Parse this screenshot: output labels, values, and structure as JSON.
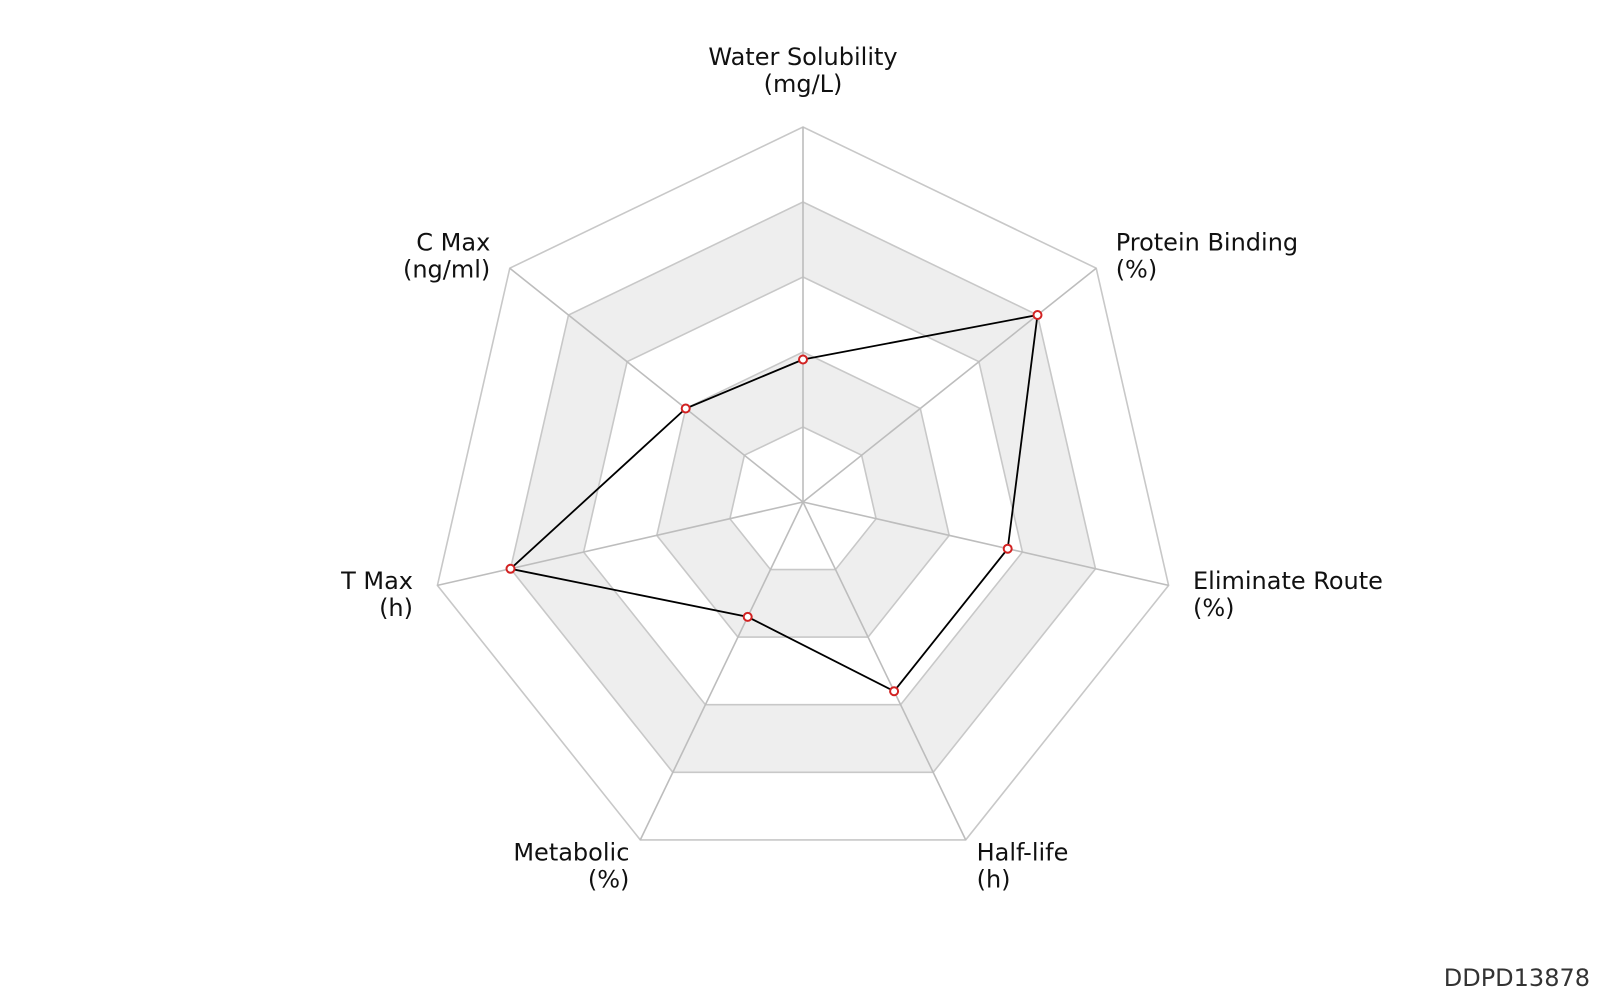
{
  "figure_id": "DDPD13878",
  "chart_data": {
    "type": "radar",
    "axes": [
      {
        "name": "Water Solubility",
        "unit": "(mg/L)"
      },
      {
        "name": "Protein Binding",
        "unit": "(%)"
      },
      {
        "name": "Eliminate Route",
        "unit": "(%)"
      },
      {
        "name": "Half-life",
        "unit": "(h)"
      },
      {
        "name": "Metabolic",
        "unit": "(%)"
      },
      {
        "name": "T Max",
        "unit": "(h)"
      },
      {
        "name": "C Max",
        "unit": "(ng/ml)"
      }
    ],
    "levels": 5,
    "range": [
      0,
      1
    ],
    "series": [
      {
        "values": [
          0.38,
          0.8,
          0.56,
          0.56,
          0.34,
          0.8,
          0.4
        ]
      }
    ],
    "colors": {
      "line": "#000000",
      "marker": "#d22222",
      "band": "#eeeeee",
      "grid": "#c8c8c8"
    }
  }
}
